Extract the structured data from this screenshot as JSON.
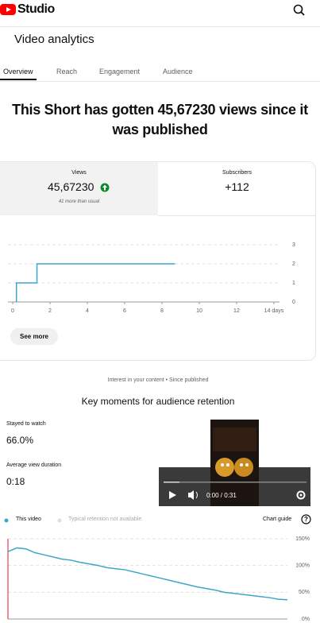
{
  "header": {
    "logo": "Studio",
    "title": "Video analytics"
  },
  "tabs": [
    "Overview",
    "Reach",
    "Engagement",
    "Audience"
  ],
  "headline": "This Short has gotten 45,67230 views since it was published",
  "stats": [
    {
      "label": "Views",
      "value": "45,67230",
      "note": "41 more than usual"
    },
    {
      "label": "Subscribers",
      "value": "+112"
    }
  ],
  "see_more": "See more",
  "interest": "Interest in your content • Since published",
  "retention": {
    "title": "Key moments for audience retention",
    "metrics": [
      {
        "label": "Stayed to watch",
        "value": "66.0%"
      },
      {
        "label": "Average view duration",
        "value": "0:18"
      }
    ],
    "video_time": "0:00 / 0:31",
    "chart_guide": "Chart guide",
    "legend_note": "Typical retention not available"
  },
  "chart_data": [
    {
      "type": "line",
      "x": [
        0.2,
        0.2,
        1.3,
        1.3,
        8.7
      ],
      "values": [
        0,
        1,
        1,
        2,
        2
      ],
      "color": "#3fa6c9",
      "xlim": [
        0,
        14.3
      ],
      "ylim": [
        0,
        3
      ],
      "xticks": [
        0,
        2,
        4,
        6,
        8,
        10,
        12,
        {
          "value": 14,
          "label": "14 days"
        }
      ],
      "yticks": [
        0,
        1,
        2,
        3
      ],
      "grid": true
    },
    {
      "type": "line",
      "series": [
        {
          "name": "This video",
          "color": "#3fa6c9",
          "values": [
            126,
            133,
            131,
            124,
            120,
            116,
            112,
            110,
            106,
            103,
            100,
            96,
            94,
            92,
            88,
            84,
            80,
            76,
            72,
            68,
            64,
            60,
            57,
            54,
            50,
            48,
            46,
            44,
            42,
            40,
            37,
            36
          ]
        }
      ],
      "ylim": [
        0,
        150
      ],
      "yticks": [
        {
          "value": 0,
          "label": "0%"
        },
        {
          "value": 50,
          "label": "50%"
        },
        {
          "value": 100,
          "label": "100%"
        },
        {
          "value": 150,
          "label": "150%"
        }
      ],
      "grid": true
    }
  ]
}
